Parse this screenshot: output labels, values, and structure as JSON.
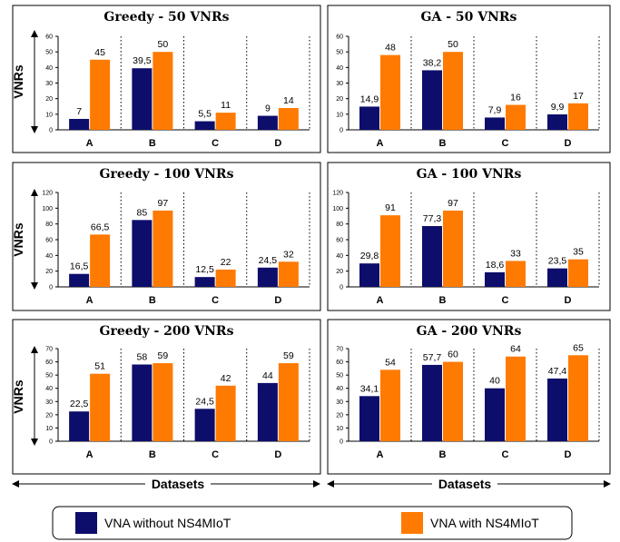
{
  "row_label": "VNRs",
  "x_axis_label": "Datasets",
  "colors": {
    "without": "#0d0d6b",
    "with": "#ff7a00"
  },
  "legend": {
    "without_label": "VNA without NS4MIoT",
    "with_label": "VNA with NS4MIoT"
  },
  "chart_data": [
    {
      "type": "bar",
      "title": "Greedy - 50 VNRs",
      "categories": [
        "A",
        "B",
        "C",
        "D"
      ],
      "series": [
        {
          "name": "VNA without NS4MIoT",
          "values": [
            7,
            39.5,
            5.5,
            9
          ],
          "labels": [
            "7",
            "39,5",
            "5,5",
            "9"
          ]
        },
        {
          "name": "VNA with NS4MIoT",
          "values": [
            45,
            50,
            11,
            14
          ],
          "labels": [
            "45",
            "50",
            "11",
            "14"
          ]
        }
      ],
      "ylim": [
        0,
        60
      ],
      "yticks": [
        0,
        10,
        20,
        30,
        40,
        50,
        60
      ],
      "ylabel": "VNRs",
      "xlabel": "Datasets"
    },
    {
      "type": "bar",
      "title": "GA - 50 VNRs",
      "categories": [
        "A",
        "B",
        "C",
        "D"
      ],
      "series": [
        {
          "name": "VNA without NS4MIoT",
          "values": [
            14.9,
            38.2,
            7.9,
            9.9
          ],
          "labels": [
            "14,9",
            "38,2",
            "7,9",
            "9,9"
          ]
        },
        {
          "name": "VNA with NS4MIoT",
          "values": [
            48,
            50,
            16,
            17
          ],
          "labels": [
            "48",
            "50",
            "16",
            "17"
          ]
        }
      ],
      "ylim": [
        0,
        60
      ],
      "yticks": [
        0,
        10,
        20,
        30,
        40,
        50,
        60
      ],
      "ylabel": "VNRs",
      "xlabel": "Datasets"
    },
    {
      "type": "bar",
      "title": "Greedy - 100 VNRs",
      "categories": [
        "A",
        "B",
        "C",
        "D"
      ],
      "series": [
        {
          "name": "VNA without NS4MIoT",
          "values": [
            16.5,
            85,
            12.5,
            24.5
          ],
          "labels": [
            "16,5",
            "85",
            "12,5",
            "24,5"
          ]
        },
        {
          "name": "VNA with NS4MIoT",
          "values": [
            66.5,
            97,
            22,
            32
          ],
          "labels": [
            "66,5",
            "97",
            "22",
            "32"
          ]
        }
      ],
      "ylim": [
        0,
        120
      ],
      "yticks": [
        0,
        20,
        40,
        60,
        80,
        100,
        120
      ],
      "ylabel": "VNRs",
      "xlabel": "Datasets"
    },
    {
      "type": "bar",
      "title": "GA - 100 VNRs",
      "categories": [
        "A",
        "B",
        "C",
        "D"
      ],
      "series": [
        {
          "name": "VNA without NS4MIoT",
          "values": [
            29.8,
            77.3,
            18.6,
            23.5
          ],
          "labels": [
            "29,8",
            "77,3",
            "18,6",
            "23,5"
          ]
        },
        {
          "name": "VNA with NS4MIoT",
          "values": [
            91,
            97,
            33,
            35
          ],
          "labels": [
            "91",
            "97",
            "33",
            "35"
          ]
        }
      ],
      "ylim": [
        0,
        120
      ],
      "yticks": [
        0,
        20,
        40,
        60,
        80,
        100,
        120
      ],
      "ylabel": "VNRs",
      "xlabel": "Datasets"
    },
    {
      "type": "bar",
      "title": "Greedy - 200 VNRs",
      "categories": [
        "A",
        "B",
        "C",
        "D"
      ],
      "series": [
        {
          "name": "VNA without NS4MIoT",
          "values": [
            22.5,
            58,
            24.5,
            44
          ],
          "labels": [
            "22,5",
            "58",
            "24,5",
            "44"
          ]
        },
        {
          "name": "VNA with NS4MIoT",
          "values": [
            51,
            59,
            42,
            59
          ],
          "labels": [
            "51",
            "59",
            "42",
            "59"
          ]
        }
      ],
      "ylim": [
        0,
        70
      ],
      "yticks": [
        0,
        10,
        20,
        30,
        40,
        50,
        60,
        70
      ],
      "ylabel": "VNRs",
      "xlabel": "Datasets"
    },
    {
      "type": "bar",
      "title": "GA - 200 VNRs",
      "categories": [
        "A",
        "B",
        "C",
        "D"
      ],
      "series": [
        {
          "name": "VNA without NS4MIoT",
          "values": [
            34.1,
            57.7,
            40,
            47.4
          ],
          "labels": [
            "34,1",
            "57,7",
            "40",
            "47,4"
          ]
        },
        {
          "name": "VNA with NS4MIoT",
          "values": [
            54,
            60,
            64,
            65
          ],
          "labels": [
            "54",
            "60",
            "64",
            "65"
          ]
        }
      ],
      "ylim": [
        0,
        70
      ],
      "yticks": [
        0,
        10,
        20,
        30,
        40,
        50,
        60,
        70
      ],
      "ylabel": "VNRs",
      "xlabel": "Datasets"
    }
  ]
}
